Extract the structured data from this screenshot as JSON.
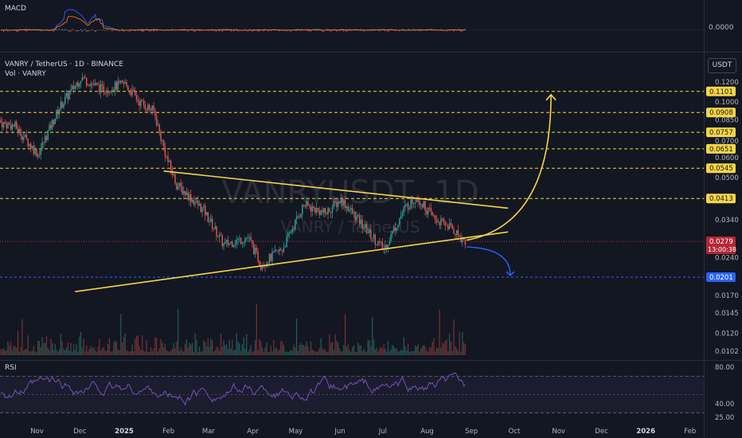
{
  "header": {
    "macd_label": "MACD",
    "symbol_title": "VANRY / TetherUS · 1D · BINANCE",
    "vol_label": "Vol · VANRY",
    "rsi_label": "RSI",
    "currency_button": "USDT",
    "macd_value": "0.0000",
    "watermark_symbol": "VANRYUSDT, 1D",
    "watermark_name": "VANRY / TetherUS"
  },
  "colors": {
    "background": "#131722",
    "up_candle": "#26a69a",
    "down_candle": "#ef5350",
    "support_resistance": "#f5d547",
    "support_level": "#2962ff",
    "trend_line": "#f5d547",
    "rsi_line": "#7e57c2",
    "macd_line": "#2962ff",
    "signal_line": "#ff6d00"
  },
  "chart_data": {
    "type": "candlestick",
    "x_ticks": [
      "Nov",
      "Dec",
      "2025",
      "Feb",
      "Mar",
      "Apr",
      "May",
      "Jun",
      "Jul",
      "Aug",
      "Sep",
      "Oct",
      "Nov",
      "Dec",
      "2026",
      "Feb"
    ],
    "price_scale": "log",
    "y_ticks": [
      0.12,
      0.1,
      0.085,
      0.07,
      0.06,
      0.05,
      0.034,
      0.024,
      0.017,
      0.0145,
      0.012,
      0.0102
    ],
    "y_tick_labels": [
      "0.1200",
      "0.1000",
      "0.0850",
      "0.0700",
      "0.0600",
      "0.0500",
      "0.0340",
      "0.0240",
      "0.0170",
      "0.0145",
      "0.0120",
      "0.0102"
    ],
    "resistance_levels": [
      {
        "value": 0.1101,
        "label": "0.1101"
      },
      {
        "value": 0.0908,
        "label": "0.0908"
      },
      {
        "value": 0.0757,
        "label": "0.0757"
      },
      {
        "value": 0.0651,
        "label": "0.0651"
      },
      {
        "value": 0.0545,
        "label": "0.0545"
      },
      {
        "value": 0.0413,
        "label": "0.0413"
      }
    ],
    "support_level": {
      "value": 0.0201,
      "label": "0.0201"
    },
    "current_price": {
      "value": 0.0279,
      "label": "0.0279",
      "countdown": "13:00:38"
    },
    "rsi_ticks": [
      80.0,
      40.0,
      25.0
    ],
    "rsi_tick_labels": [
      "80.00",
      "40.00",
      "25.00"
    ],
    "triangle": {
      "upper_line": [
        {
          "date": "2025-02-01",
          "price": 0.0531
        },
        {
          "date": "2025-09-30",
          "price": 0.0378
        }
      ],
      "lower_line": [
        {
          "date": "2024-12-01",
          "price": 0.0176
        },
        {
          "date": "2025-09-30",
          "price": 0.0304
        }
      ]
    },
    "projections": [
      {
        "name": "bullish",
        "from": {
          "date": "2025-09-01",
          "price": 0.0282
        },
        "to": {
          "date": "2025-10-30",
          "price": 0.1101
        }
      },
      {
        "name": "bearish",
        "from": {
          "date": "2025-09-01",
          "price": 0.0265
        },
        "to": {
          "date": "2025-10-01",
          "price": 0.0201
        }
      }
    ]
  }
}
